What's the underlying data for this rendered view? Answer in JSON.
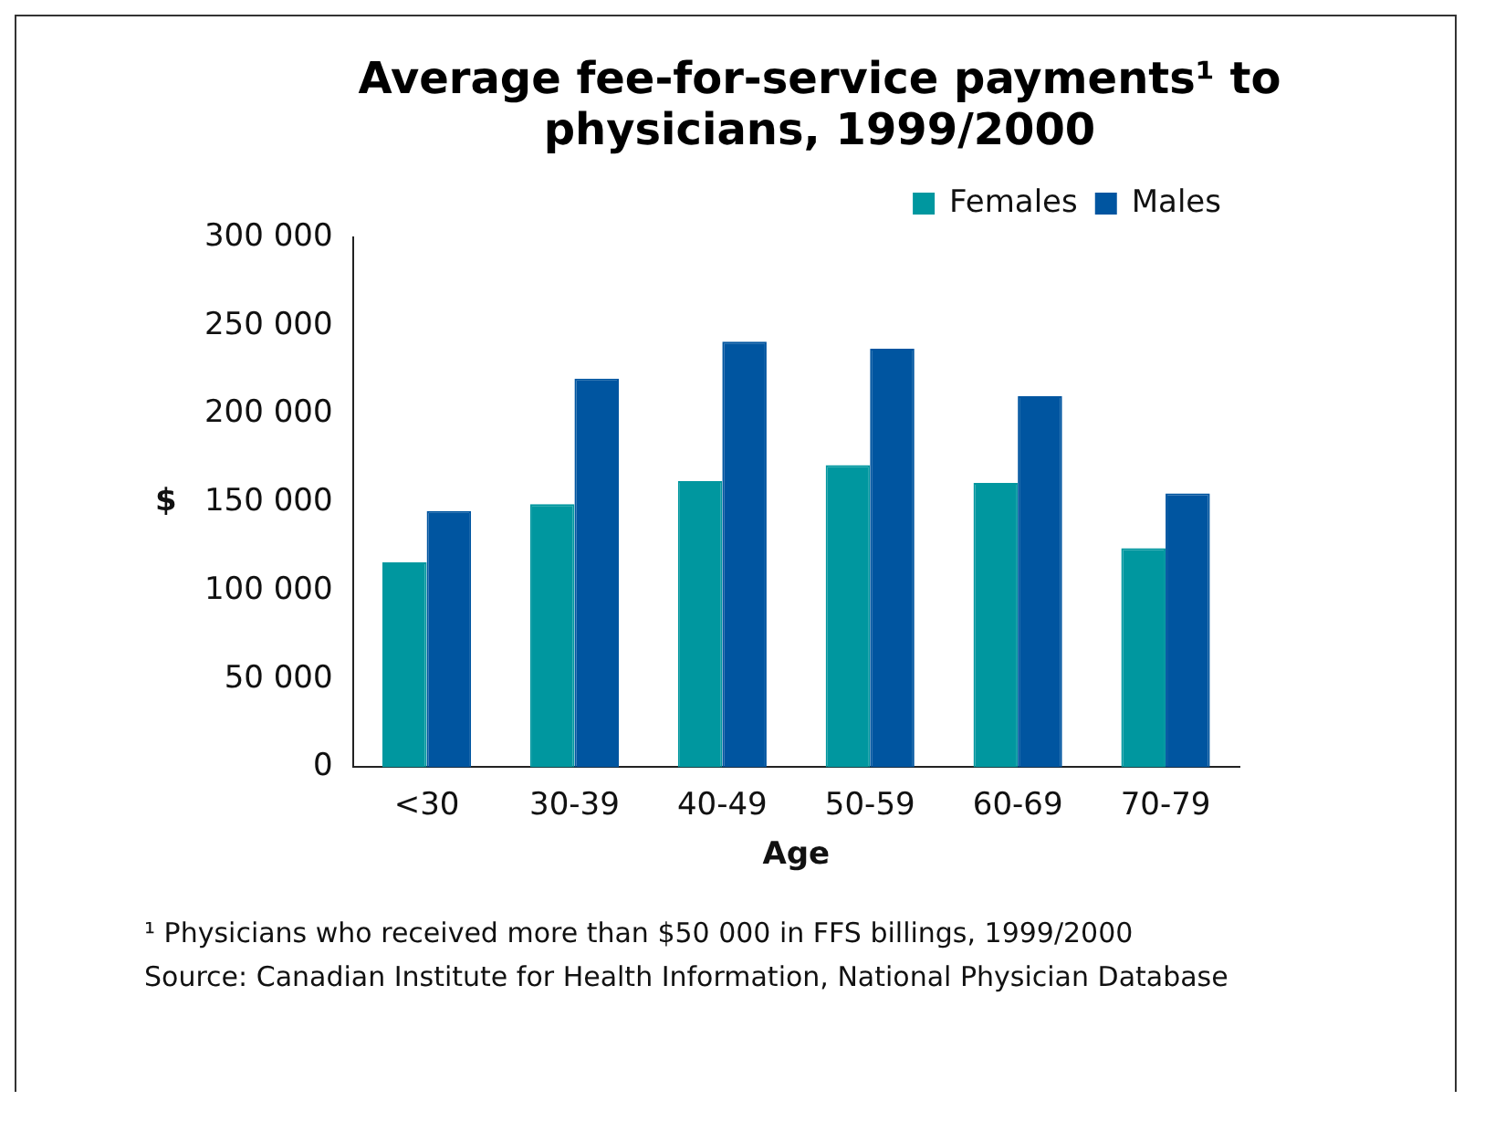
{
  "chart_data": {
    "type": "bar",
    "title": "Average fee-for-service payments¹ to physicians, 1999/2000",
    "xlabel": "Age",
    "ylabel": "$",
    "categories": [
      "<30",
      "30-39",
      "40-49",
      "50-59",
      "60-69",
      "70-79"
    ],
    "series": [
      {
        "name": "Females",
        "color": "#00979f",
        "values": [
          116000,
          149000,
          162000,
          171000,
          161000,
          124000
        ]
      },
      {
        "name": "Males",
        "color": "#0055a0",
        "values": [
          145000,
          220000,
          241000,
          237000,
          210000,
          155000
        ]
      }
    ],
    "ylim": [
      0,
      300000
    ],
    "yticks": [
      {
        "value": 0,
        "label": "0"
      },
      {
        "value": 50000,
        "label": "50 000"
      },
      {
        "value": 100000,
        "label": "100 000"
      },
      {
        "value": 150000,
        "label": "150 000"
      },
      {
        "value": 200000,
        "label": "200 000"
      },
      {
        "value": 250000,
        "label": "250 000"
      },
      {
        "value": 300000,
        "label": "300 000"
      }
    ],
    "grid": false,
    "legend": "top right",
    "annotations": [
      "¹ Physicians who received more than $50 000 in FFS billings, 1999/2000",
      "Source: Canadian Institute for Health Information, National Physician Database"
    ]
  }
}
